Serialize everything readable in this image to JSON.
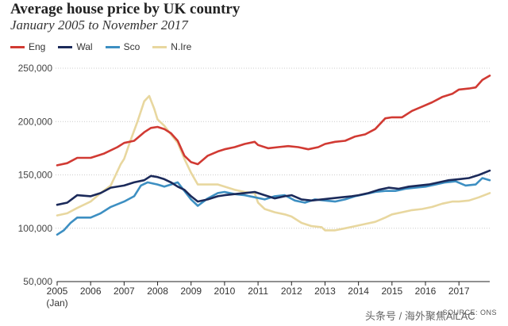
{
  "chart_data": {
    "type": "line",
    "title": "Average house price by UK country",
    "subtitle": "January 2005 to November 2017",
    "xlabel": "",
    "ylabel": "",
    "x_tick_labels": [
      "2005",
      "2006",
      "2007",
      "2008",
      "2009",
      "2010",
      "2011",
      "2012",
      "2013",
      "2014",
      "2015",
      "2016",
      "2017"
    ],
    "x_first_sublabel": "(Jan)",
    "xlim": [
      2005.0,
      2017.92
    ],
    "y_tick_labels": [
      "50,000",
      "100,000",
      "150,000",
      "200,000",
      "250,000"
    ],
    "y_ticks": [
      50000,
      100000,
      150000,
      200000,
      250000
    ],
    "ylim": [
      50000,
      250000
    ],
    "series": [
      {
        "name": "Eng",
        "color": "#d13a33",
        "x": [
          2005.0,
          2005.3,
          2005.6,
          2006.0,
          2006.4,
          2006.8,
          2007.0,
          2007.3,
          2007.6,
          2007.8,
          2008.0,
          2008.2,
          2008.4,
          2008.6,
          2008.8,
          2009.0,
          2009.2,
          2009.5,
          2009.8,
          2010.0,
          2010.3,
          2010.6,
          2010.9,
          2011.0,
          2011.3,
          2011.6,
          2011.9,
          2012.2,
          2012.5,
          2012.8,
          2013.0,
          2013.3,
          2013.6,
          2013.9,
          2014.2,
          2014.5,
          2014.8,
          2015.0,
          2015.3,
          2015.6,
          2015.9,
          2016.2,
          2016.5,
          2016.8,
          2017.0,
          2017.3,
          2017.5,
          2017.7,
          2017.92
        ],
        "values": [
          159000,
          161000,
          166000,
          166000,
          170000,
          176000,
          180000,
          182000,
          190000,
          194000,
          195000,
          193000,
          189000,
          182000,
          168000,
          162000,
          160000,
          168000,
          172000,
          174000,
          176000,
          179000,
          181000,
          178000,
          175000,
          176000,
          177000,
          176000,
          174000,
          176000,
          179000,
          181000,
          182000,
          186000,
          188000,
          193000,
          203000,
          204000,
          204000,
          210000,
          214000,
          218000,
          223000,
          226000,
          230000,
          231000,
          232000,
          239000,
          243000
        ]
      },
      {
        "name": "Wal",
        "color": "#1b2a5a",
        "x": [
          2005.0,
          2005.3,
          2005.6,
          2006.0,
          2006.3,
          2006.6,
          2007.0,
          2007.3,
          2007.6,
          2007.8,
          2008.0,
          2008.2,
          2008.4,
          2008.6,
          2008.8,
          2009.0,
          2009.2,
          2009.5,
          2009.8,
          2010.0,
          2010.3,
          2010.6,
          2010.9,
          2011.2,
          2011.5,
          2011.8,
          2012.0,
          2012.3,
          2012.6,
          2012.9,
          2013.2,
          2013.5,
          2013.8,
          2014.0,
          2014.3,
          2014.6,
          2014.9,
          2015.2,
          2015.5,
          2015.8,
          2016.1,
          2016.4,
          2016.7,
          2017.0,
          2017.3,
          2017.6,
          2017.92
        ],
        "values": [
          122000,
          124000,
          131000,
          130000,
          133000,
          138000,
          140000,
          143000,
          145000,
          149000,
          148000,
          146000,
          143000,
          139000,
          136000,
          130000,
          125000,
          127000,
          130000,
          131000,
          132000,
          133000,
          134000,
          131000,
          128000,
          130000,
          131000,
          127000,
          126000,
          127000,
          128000,
          129000,
          130000,
          131000,
          133000,
          136000,
          138000,
          137000,
          139000,
          140000,
          141000,
          143000,
          145000,
          146000,
          147000,
          150000,
          154000
        ]
      },
      {
        "name": "Sco",
        "color": "#3d8fc2",
        "x": [
          2005.0,
          2005.2,
          2005.4,
          2005.6,
          2006.0,
          2006.3,
          2006.6,
          2007.0,
          2007.3,
          2007.5,
          2007.7,
          2008.0,
          2008.2,
          2008.4,
          2008.6,
          2008.8,
          2009.0,
          2009.2,
          2009.5,
          2009.8,
          2010.0,
          2010.3,
          2010.6,
          2010.9,
          2011.2,
          2011.5,
          2011.8,
          2012.1,
          2012.4,
          2012.7,
          2013.0,
          2013.3,
          2013.6,
          2013.9,
          2014.2,
          2014.5,
          2014.8,
          2015.1,
          2015.4,
          2015.7,
          2016.0,
          2016.3,
          2016.6,
          2016.9,
          2017.2,
          2017.5,
          2017.7,
          2017.92
        ],
        "values": [
          94000,
          98000,
          105000,
          110000,
          110000,
          114000,
          120000,
          125000,
          130000,
          140000,
          143000,
          141000,
          139000,
          141000,
          143000,
          135000,
          127000,
          121000,
          128000,
          133000,
          134000,
          132000,
          131000,
          129000,
          127000,
          130000,
          131000,
          126000,
          124000,
          127000,
          126000,
          125000,
          127000,
          130000,
          132000,
          134000,
          135000,
          135000,
          137000,
          138000,
          139000,
          141000,
          143000,
          144000,
          140000,
          141000,
          147000,
          145000
        ]
      },
      {
        "name": "N.Ire",
        "color": "#e8d79f",
        "x": [
          2005.0,
          2005.3,
          2005.6,
          2006.0,
          2006.3,
          2006.6,
          2006.9,
          2007.0,
          2007.2,
          2007.4,
          2007.6,
          2007.75,
          2007.9,
          2008.0,
          2008.2,
          2008.4,
          2008.6,
          2008.8,
          2009.0,
          2009.2,
          2009.5,
          2009.8,
          2010.0,
          2010.3,
          2010.6,
          2010.9,
          2011.0,
          2011.2,
          2011.5,
          2011.8,
          2012.0,
          2012.3,
          2012.6,
          2012.9,
          2013.0,
          2013.3,
          2013.6,
          2013.9,
          2014.2,
          2014.5,
          2014.8,
          2015.0,
          2015.3,
          2015.6,
          2015.9,
          2016.2,
          2016.5,
          2016.8,
          2017.0,
          2017.3,
          2017.6,
          2017.92
        ],
        "values": [
          112000,
          114000,
          119000,
          125000,
          133000,
          140000,
          160000,
          165000,
          183000,
          200000,
          219000,
          224000,
          212000,
          202000,
          196000,
          188000,
          180000,
          165000,
          152000,
          141000,
          141000,
          141000,
          139000,
          136000,
          134000,
          133000,
          124000,
          118000,
          115000,
          113000,
          111000,
          105000,
          102000,
          101000,
          98000,
          98000,
          100000,
          102000,
          104000,
          106000,
          110000,
          113000,
          115000,
          117000,
          118000,
          120000,
          123000,
          125000,
          125000,
          126000,
          129000,
          133000
        ]
      }
    ],
    "source": "SOURCE: ONS"
  },
  "watermark": "头条号 / 海外聚焦AiLAC"
}
